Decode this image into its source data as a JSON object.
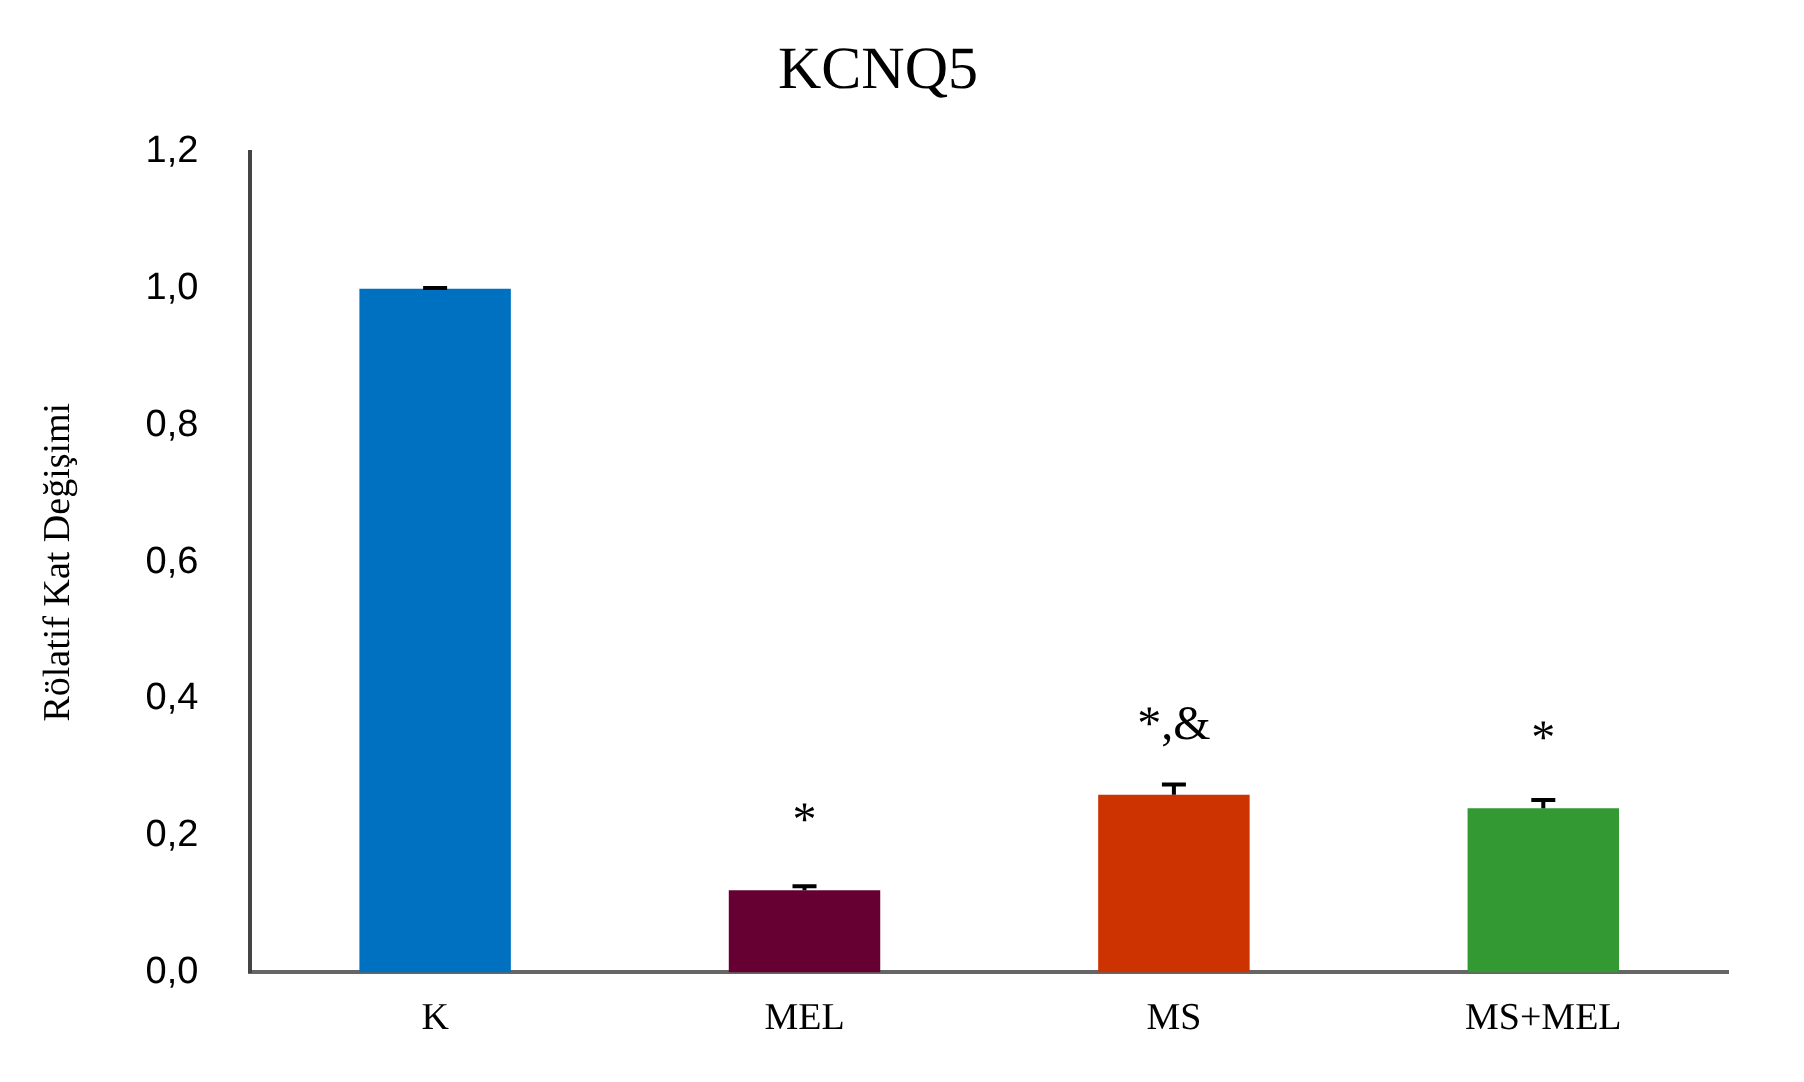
{
  "chart_data": {
    "type": "bar",
    "title": "KCNQ5",
    "ylabel": "Rölatif Kat Değişimi",
    "categories": [
      "K",
      "MEL",
      "MS",
      "MS+MEL"
    ],
    "values": [
      1.0,
      0.12,
      0.26,
      0.24
    ],
    "colors": [
      "#0070c0",
      "#660033",
      "#cc3300",
      "#339933"
    ],
    "errors": [
      0.001,
      0.006,
      0.015,
      0.012
    ],
    "ylim": [
      0,
      1.2
    ],
    "yticks": [
      {
        "value": 0,
        "label": "0,0"
      },
      {
        "value": 0.2,
        "label": "0,2"
      },
      {
        "value": 0.4,
        "label": "0,4"
      },
      {
        "value": 0.6,
        "label": "0,6"
      },
      {
        "value": 0.8,
        "label": "0,8"
      },
      {
        "value": 1.0,
        "label": "1,0"
      },
      {
        "value": 1.2,
        "label": "1,2"
      }
    ],
    "grid": false,
    "legend": false,
    "annotations": [
      {
        "text": "*",
        "x": "MEL",
        "y": 0.12
      },
      {
        "text": "*,&",
        "x": "MS",
        "y": 0.26
      },
      {
        "text": "*",
        "x": "MS+MEL",
        "y": 0.24
      }
    ]
  }
}
